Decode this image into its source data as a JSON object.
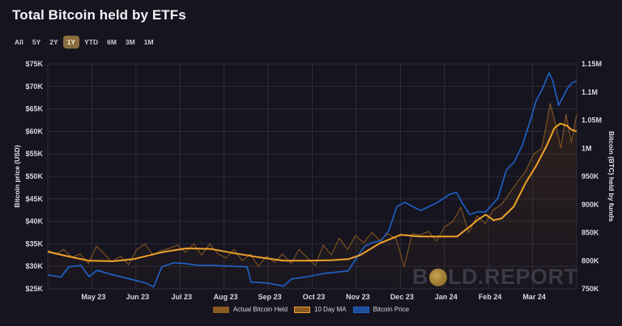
{
  "header": {
    "title": "Total Bitcoin held by ETFs"
  },
  "ranges": [
    {
      "label": "All",
      "active": false
    },
    {
      "label": "5Y",
      "active": false
    },
    {
      "label": "2Y",
      "active": false
    },
    {
      "label": "1Y",
      "active": true
    },
    {
      "label": "YTD",
      "active": false
    },
    {
      "label": "6M",
      "active": false
    },
    {
      "label": "3M",
      "active": false
    },
    {
      "label": "1M",
      "active": false
    }
  ],
  "colors": {
    "background": "#16141f",
    "grid": "#2e2c3a",
    "actual_held": "#8a5a22",
    "ma10": "#f0a229",
    "price": "#1f63c9",
    "active_range": "#8a6d3e"
  },
  "legend": [
    {
      "label": "Actual Bitcoin Held",
      "swatch": "actual_held"
    },
    {
      "label": "10 Day MA",
      "swatch": "ma10"
    },
    {
      "label": "Bitcoin Price",
      "swatch": "price"
    }
  ],
  "watermark": {
    "left": "B",
    "right": "LD.REPORT"
  },
  "chart_data": {
    "type": "line",
    "title": "Total Bitcoin held by ETFs",
    "x_tick_labels": [
      "May 23",
      "Jun 23",
      "Jul 23",
      "Aug 23",
      "Sep 23",
      "Oct 23",
      "Nov 23",
      "Dec 23",
      "Jan 24",
      "Feb 24",
      "Mar 24"
    ],
    "y_left": {
      "label": "Bitcoin price (USD)",
      "range": [
        25000,
        75000
      ],
      "ticks": [
        "$25K",
        "$30K",
        "$35K",
        "$40K",
        "$45K",
        "$50K",
        "$55K",
        "$60K",
        "$65K",
        "$70K",
        "$75K"
      ]
    },
    "y_right": {
      "label": "Bitcoin (BTC) held by funds",
      "range": [
        750000,
        1150000
      ],
      "ticks": [
        "750K",
        "800K",
        "850K",
        "900K",
        "950K",
        "1M",
        "1.05M",
        "1.1M",
        "1.15M"
      ]
    },
    "grid": true,
    "legend_position": "bottom",
    "x_domain": [
      0,
      1
    ],
    "series": [
      {
        "name": "Bitcoin Price",
        "axis": "left",
        "x": [
          0.0,
          0.025,
          0.04,
          0.063,
          0.078,
          0.093,
          0.124,
          0.155,
          0.185,
          0.2,
          0.216,
          0.239,
          0.262,
          0.285,
          0.308,
          0.377,
          0.384,
          0.415,
          0.446,
          0.461,
          0.492,
          0.522,
          0.568,
          0.583,
          0.599,
          0.614,
          0.63,
          0.645,
          0.66,
          0.675,
          0.705,
          0.737,
          0.76,
          0.773,
          0.783,
          0.798,
          0.813,
          0.828,
          0.851,
          0.867,
          0.882,
          0.897,
          0.913,
          0.923,
          0.935,
          0.948,
          0.955,
          0.966,
          0.974,
          0.982,
          0.99,
          1.0
        ],
        "values": [
          28100,
          27600,
          29900,
          30200,
          27700,
          29100,
          28100,
          27200,
          26300,
          25400,
          29900,
          30800,
          30600,
          30200,
          30200,
          29900,
          26500,
          26300,
          25600,
          27200,
          27700,
          28400,
          29000,
          31700,
          34400,
          35300,
          35700,
          38000,
          43300,
          44200,
          42400,
          44200,
          46000,
          46400,
          44200,
          41500,
          42100,
          42100,
          45100,
          51400,
          53200,
          56800,
          62600,
          66700,
          69400,
          73000,
          71200,
          65800,
          67600,
          69400,
          70700,
          71200
        ]
      },
      {
        "name": "10 Day MA",
        "axis": "right",
        "x": [
          0.0,
          0.032,
          0.078,
          0.124,
          0.163,
          0.216,
          0.262,
          0.308,
          0.354,
          0.4,
          0.446,
          0.492,
          0.538,
          0.569,
          0.591,
          0.628,
          0.667,
          0.705,
          0.743,
          0.774,
          0.797,
          0.812,
          0.828,
          0.843,
          0.858,
          0.881,
          0.904,
          0.923,
          0.943,
          0.958,
          0.969,
          0.982,
          0.99,
          1.0
        ],
        "values": [
          816000,
          809000,
          800000,
          799000,
          803000,
          815000,
          822000,
          821000,
          813000,
          806000,
          800000,
          800000,
          801000,
          803000,
          810000,
          831000,
          846000,
          843000,
          843000,
          843000,
          860000,
          872000,
          882000,
          872000,
          875000,
          896000,
          939000,
          968000,
          1004000,
          1036000,
          1044000,
          1040000,
          1033000,
          1030000
        ]
      },
      {
        "name": "Actual Bitcoin Held",
        "axis": "right",
        "x": [
          0.0,
          0.015,
          0.03,
          0.046,
          0.061,
          0.077,
          0.092,
          0.107,
          0.12,
          0.138,
          0.153,
          0.168,
          0.184,
          0.199,
          0.214,
          0.23,
          0.245,
          0.26,
          0.276,
          0.291,
          0.306,
          0.322,
          0.337,
          0.352,
          0.368,
          0.383,
          0.398,
          0.414,
          0.429,
          0.444,
          0.46,
          0.475,
          0.49,
          0.506,
          0.521,
          0.536,
          0.551,
          0.567,
          0.582,
          0.597,
          0.613,
          0.628,
          0.643,
          0.659,
          0.674,
          0.689,
          0.704,
          0.72,
          0.735,
          0.75,
          0.766,
          0.781,
          0.796,
          0.812,
          0.827,
          0.842,
          0.858,
          0.873,
          0.888,
          0.904,
          0.919,
          0.934,
          0.95,
          0.961,
          0.97,
          0.98,
          0.99,
          1.0
        ],
        "values": [
          818000,
          812000,
          820000,
          806000,
          812000,
          795000,
          826000,
          812000,
          798000,
          808000,
          793000,
          820000,
          830000,
          810000,
          818000,
          822000,
          828000,
          815000,
          830000,
          810000,
          830000,
          812000,
          805000,
          820000,
          800000,
          812000,
          790000,
          808000,
          797000,
          812000,
          795000,
          820000,
          806000,
          792000,
          828000,
          810000,
          840000,
          820000,
          845000,
          832000,
          850000,
          836000,
          848000,
          838000,
          790000,
          848000,
          846000,
          852000,
          835000,
          860000,
          870000,
          895000,
          850000,
          880000,
          866000,
          890000,
          900000,
          920000,
          940000,
          960000,
          990000,
          1000000,
          1080000,
          1040000,
          1000000,
          1060000,
          1010000,
          1060000
        ]
      }
    ]
  }
}
